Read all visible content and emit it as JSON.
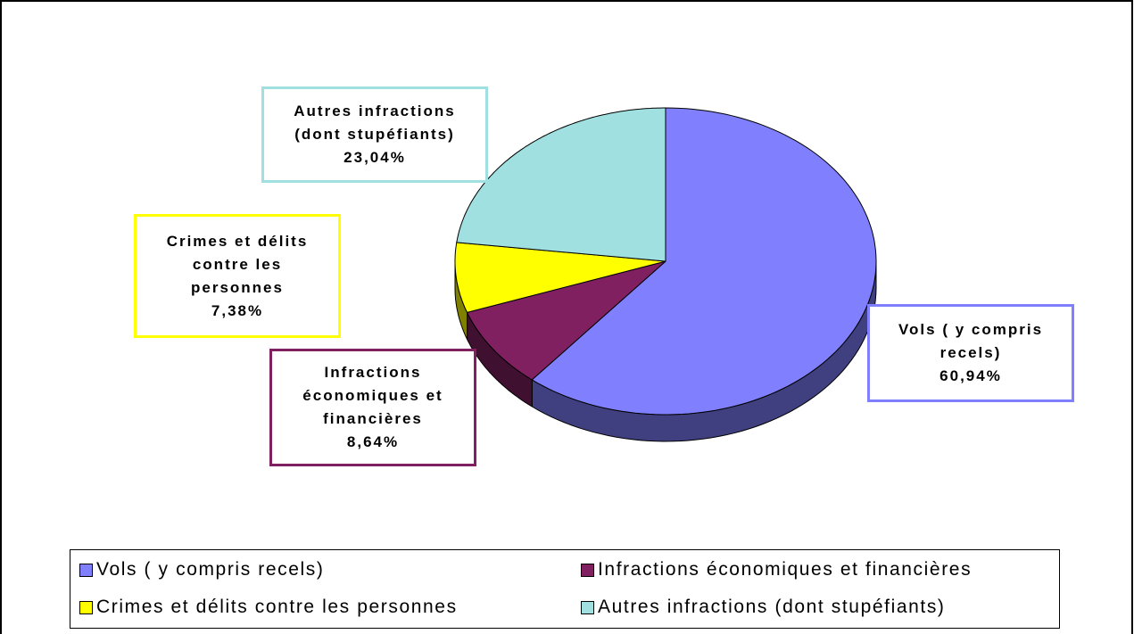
{
  "chart_data": {
    "type": "pie3d",
    "categories": [
      "Vols ( y compris recels)",
      "Infractions économiques et financières",
      "Crimes et délits contre les personnes",
      "Autres infractions (dont stupéfiants)"
    ],
    "values": [
      60.94,
      8.64,
      7.38,
      23.04
    ],
    "value_labels": [
      "60,94%",
      "8,64%",
      "7,38%",
      "23,04%"
    ],
    "colors": [
      "#8080ff",
      "#802060",
      "#ffff00",
      "#a0e0e0"
    ],
    "legend": "bottom"
  }
}
